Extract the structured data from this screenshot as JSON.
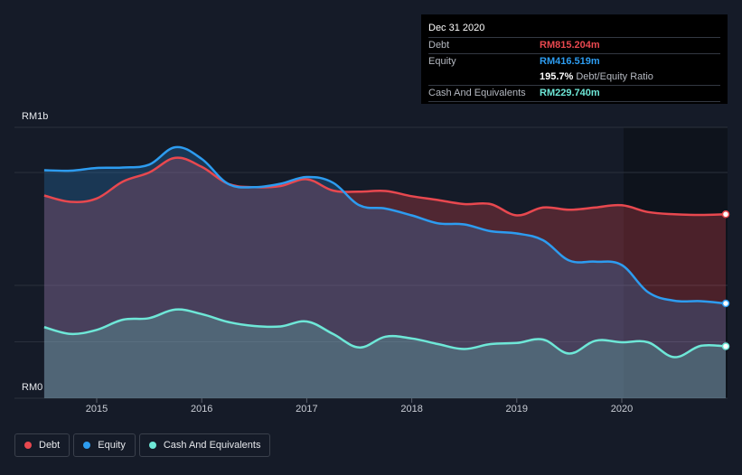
{
  "tooltip": {
    "date": "Dec 31 2020",
    "rows": [
      {
        "label": "Debt",
        "value": "RM815.204m",
        "color": "#e8484f"
      },
      {
        "label": "Equity",
        "value": "RM416.519m",
        "color": "#2d9cf0"
      },
      {
        "label": "",
        "value": "195.7%",
        "suffix": "Debt/Equity Ratio",
        "color": "#ffffff"
      },
      {
        "label": "Cash And Equivalents",
        "value": "RM229.740m",
        "color": "#6ee7d7"
      }
    ]
  },
  "legend": [
    {
      "label": "Debt",
      "color": "#e8484f"
    },
    {
      "label": "Equity",
      "color": "#2d9cf0"
    },
    {
      "label": "Cash And Equivalents",
      "color": "#6ee7d7"
    }
  ],
  "chart_data": {
    "type": "area",
    "ylabel_top": "RM1b",
    "ylabel_bottom": "RM0",
    "ylim": [
      0,
      1200
    ],
    "xlim": [
      2014.5,
      2021.0
    ],
    "x_ticks": [
      "2015",
      "2016",
      "2017",
      "2018",
      "2019",
      "2020"
    ],
    "x_tick_values": [
      2015,
      2016,
      2017,
      2018,
      2019,
      2020
    ],
    "series": [
      {
        "name": "Debt",
        "color": "#e8484f",
        "x": [
          2014.5,
          2014.75,
          2015.0,
          2015.25,
          2015.5,
          2015.75,
          2016.0,
          2016.25,
          2016.5,
          2016.75,
          2017.0,
          2017.25,
          2017.5,
          2017.75,
          2018.0,
          2018.25,
          2018.5,
          2018.75,
          2019.0,
          2019.25,
          2019.5,
          2019.75,
          2020.0,
          2020.25,
          2020.5,
          2020.75,
          2021.0
        ],
        "values": [
          898,
          870,
          885,
          960,
          1000,
          1065,
          1025,
          950,
          935,
          940,
          970,
          920,
          915,
          918,
          895,
          878,
          860,
          860,
          810,
          845,
          835,
          845,
          855,
          825,
          815,
          812,
          815
        ]
      },
      {
        "name": "Equity",
        "color": "#2d9cf0",
        "x": [
          2014.5,
          2014.75,
          2015.0,
          2015.25,
          2015.5,
          2015.75,
          2016.0,
          2016.25,
          2016.5,
          2016.75,
          2017.0,
          2017.25,
          2017.5,
          2017.75,
          2018.0,
          2018.25,
          2018.5,
          2018.75,
          2019.0,
          2019.25,
          2019.5,
          2019.75,
          2020.0,
          2020.25,
          2020.5,
          2020.75,
          2021.0
        ],
        "values": [
          1010,
          1008,
          1020,
          1022,
          1035,
          1112,
          1060,
          950,
          935,
          950,
          980,
          955,
          855,
          840,
          810,
          775,
          770,
          740,
          730,
          700,
          610,
          605,
          590,
          470,
          432,
          430,
          420
        ]
      },
      {
        "name": "Cash And Equivalents",
        "color": "#6ee7d7",
        "x": [
          2014.5,
          2014.75,
          2015.0,
          2015.25,
          2015.5,
          2015.75,
          2016.0,
          2016.25,
          2016.5,
          2016.75,
          2017.0,
          2017.25,
          2017.5,
          2017.75,
          2018.0,
          2018.25,
          2018.5,
          2018.75,
          2019.0,
          2019.25,
          2019.5,
          2019.75,
          2020.0,
          2020.25,
          2020.5,
          2020.75,
          2021.0
        ],
        "values": [
          315,
          285,
          303,
          348,
          355,
          393,
          373,
          338,
          320,
          318,
          340,
          285,
          225,
          273,
          265,
          240,
          218,
          240,
          245,
          260,
          198,
          255,
          248,
          248,
          182,
          232,
          230
        ]
      }
    ],
    "grid": true,
    "legend_position": "bottom-left"
  }
}
